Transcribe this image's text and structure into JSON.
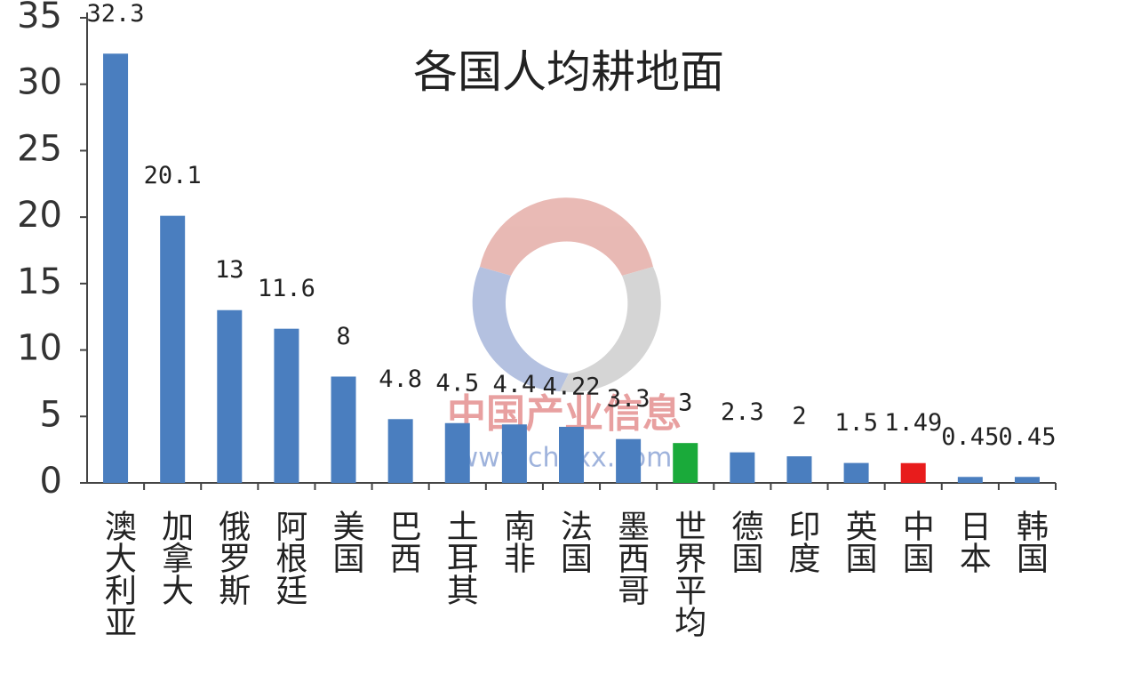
{
  "chart_data": {
    "type": "bar",
    "title": "各国人均耕地面",
    "categories": [
      "澳大利亚",
      "加拿大",
      "俄罗斯",
      "阿根廷",
      "美国",
      "巴西",
      "土耳其",
      "南非",
      "法国",
      "墨西哥",
      "世界平均",
      "德国",
      "印度",
      "英国",
      "中国",
      "日本",
      "韩国"
    ],
    "values": [
      32.3,
      20.1,
      13,
      11.6,
      8,
      4.8,
      4.5,
      4.4,
      4.22,
      3.3,
      3,
      2.3,
      2,
      1.5,
      1.49,
      0.45,
      0.45
    ],
    "colors": [
      "#4a7ebf",
      "#4a7ebf",
      "#4a7ebf",
      "#4a7ebf",
      "#4a7ebf",
      "#4a7ebf",
      "#4a7ebf",
      "#4a7ebf",
      "#4a7ebf",
      "#4a7ebf",
      "#1aaa3a",
      "#4a7ebf",
      "#4a7ebf",
      "#4a7ebf",
      "#e81c1c",
      "#4a7ebf",
      "#4a7ebf"
    ],
    "ylim": [
      0,
      35
    ],
    "yticks": [
      0,
      5,
      10,
      15,
      20,
      25,
      30,
      35
    ],
    "grid": false
  },
  "watermark": {
    "name": "中国产业信息",
    "url": "www.chyxx.com"
  }
}
